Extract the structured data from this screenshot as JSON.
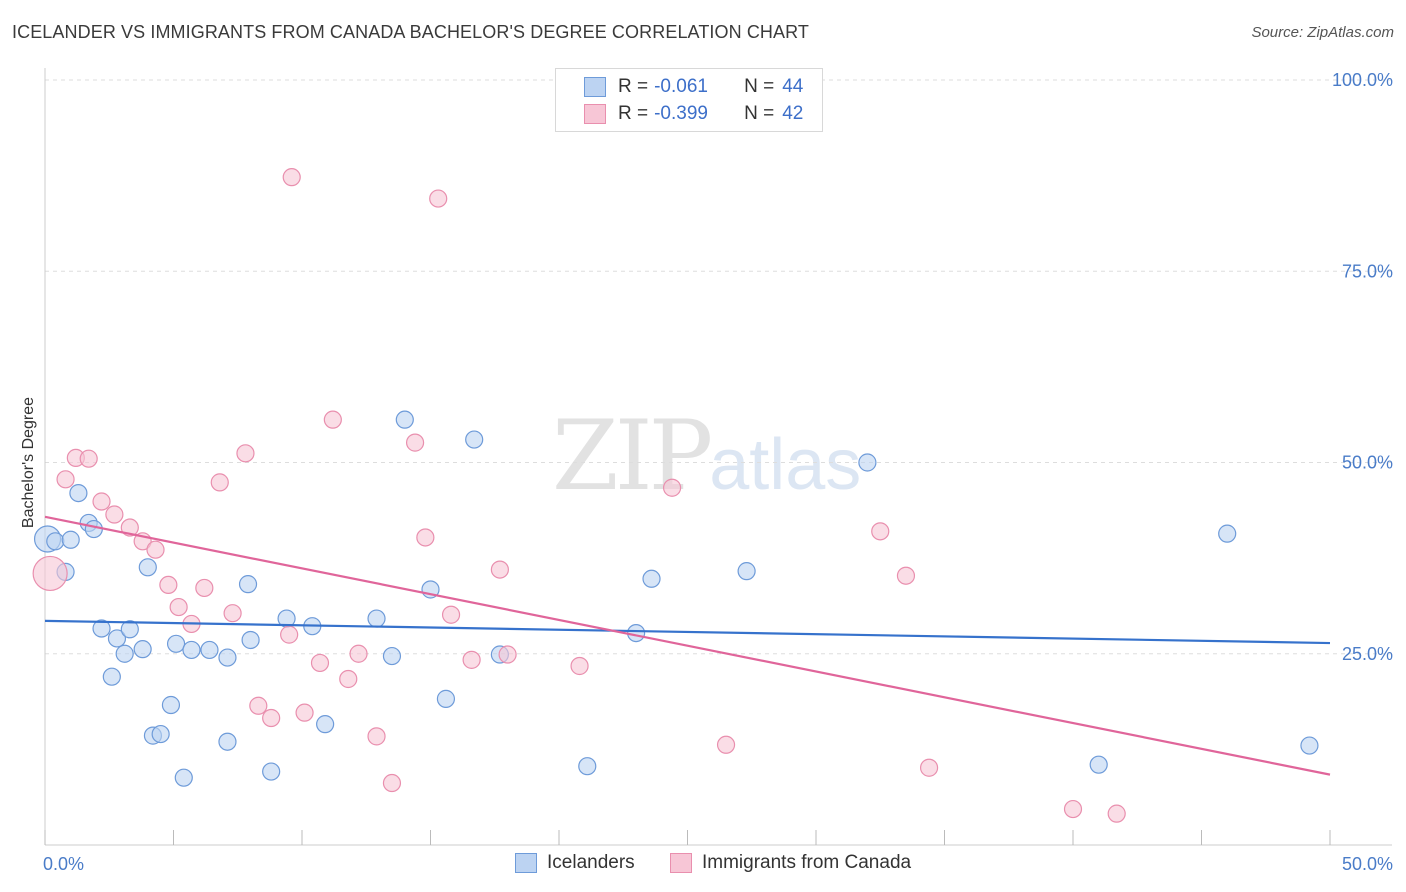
{
  "title": "ICELANDER VS IMMIGRANTS FROM CANADA BACHELOR'S DEGREE CORRELATION CHART",
  "source": "Source: ZipAtlas.com",
  "watermark": {
    "zip": "ZIP",
    "atlas": "atlas"
  },
  "legend": {
    "r_label": "R =",
    "n_label": "N =",
    "rows": [
      {
        "r": "-0.061",
        "n": "44"
      },
      {
        "r": "-0.399",
        "n": "42"
      }
    ]
  },
  "bottom_legend": {
    "series1": "Icelanders",
    "series2": "Immigrants from Canada"
  },
  "colors": {
    "blue_fill": "#bcd3f2",
    "blue_stroke": "#6e9bd9",
    "blue_line": "#3672cc",
    "pink_fill": "#f7c6d6",
    "pink_stroke": "#e98fae",
    "pink_line": "#e0659a",
    "grid": "#dddddd",
    "tick": "#4a7cc8"
  },
  "chart_data": {
    "type": "scatter",
    "title": "ICELANDER VS IMMIGRANTS FROM CANADA BACHELOR'S DEGREE CORRELATION CHART",
    "xlabel": "",
    "ylabel": "Bachelor's Degree",
    "xlim": [
      0,
      50
    ],
    "ylim": [
      0,
      100
    ],
    "x_tick_labels": [
      "0.0%",
      "50.0%"
    ],
    "y_ticks": [
      25,
      50,
      75,
      100
    ],
    "y_tick_labels": [
      "25.0%",
      "50.0%",
      "75.0%",
      "100.0%"
    ],
    "series": [
      {
        "name": "Icelanders",
        "r": -0.061,
        "n": 44,
        "trend": [
          [
            0,
            29.3
          ],
          [
            50,
            26.4
          ]
        ],
        "points": [
          [
            0.1,
            40.0
          ],
          [
            0.4,
            39.7
          ],
          [
            0.8,
            35.7
          ],
          [
            1.0,
            39.9
          ],
          [
            1.3,
            46.0
          ],
          [
            1.7,
            42.1
          ],
          [
            1.9,
            41.3
          ],
          [
            2.2,
            28.3
          ],
          [
            2.6,
            22.0
          ],
          [
            2.8,
            27.0
          ],
          [
            3.1,
            25.0
          ],
          [
            3.3,
            28.2
          ],
          [
            3.8,
            25.6
          ],
          [
            4.0,
            36.3
          ],
          [
            4.2,
            14.3
          ],
          [
            4.5,
            14.5
          ],
          [
            4.9,
            18.3
          ],
          [
            5.1,
            26.3
          ],
          [
            5.4,
            8.8
          ],
          [
            5.7,
            25.5
          ],
          [
            6.4,
            25.5
          ],
          [
            7.1,
            24.5
          ],
          [
            7.1,
            13.5
          ],
          [
            7.9,
            34.1
          ],
          [
            8.0,
            26.8
          ],
          [
            8.8,
            9.6
          ],
          [
            9.4,
            29.6
          ],
          [
            10.4,
            28.6
          ],
          [
            10.9,
            15.8
          ],
          [
            12.9,
            29.6
          ],
          [
            13.5,
            24.7
          ],
          [
            14.0,
            55.6
          ],
          [
            15.0,
            33.4
          ],
          [
            15.6,
            19.1
          ],
          [
            16.7,
            53.0
          ],
          [
            17.7,
            24.9
          ],
          [
            21.1,
            10.3
          ],
          [
            23.0,
            27.7
          ],
          [
            23.6,
            34.8
          ],
          [
            27.3,
            35.8
          ],
          [
            32.0,
            50.0
          ],
          [
            41.0,
            10.5
          ],
          [
            46.0,
            40.7
          ],
          [
            49.2,
            13.0
          ]
        ]
      },
      {
        "name": "Immigrants from Canada",
        "r": -0.399,
        "n": 42,
        "trend": [
          [
            0,
            42.9
          ],
          [
            50,
            9.2
          ]
        ],
        "points": [
          [
            0.2,
            35.5
          ],
          [
            0.8,
            47.8
          ],
          [
            1.2,
            50.6
          ],
          [
            1.7,
            50.5
          ],
          [
            2.2,
            44.9
          ],
          [
            2.7,
            43.2
          ],
          [
            3.3,
            41.5
          ],
          [
            3.8,
            39.7
          ],
          [
            4.3,
            38.6
          ],
          [
            4.8,
            34.0
          ],
          [
            5.2,
            31.1
          ],
          [
            5.7,
            28.9
          ],
          [
            6.2,
            33.6
          ],
          [
            6.8,
            47.4
          ],
          [
            7.3,
            30.3
          ],
          [
            7.8,
            51.2
          ],
          [
            8.3,
            18.2
          ],
          [
            8.8,
            16.6
          ],
          [
            9.5,
            27.5
          ],
          [
            9.6,
            87.3
          ],
          [
            10.1,
            17.3
          ],
          [
            10.7,
            23.8
          ],
          [
            11.2,
            55.6
          ],
          [
            11.8,
            21.7
          ],
          [
            12.2,
            25.0
          ],
          [
            12.9,
            14.2
          ],
          [
            13.5,
            8.1
          ],
          [
            14.4,
            52.6
          ],
          [
            14.8,
            40.2
          ],
          [
            15.3,
            84.5
          ],
          [
            15.8,
            30.1
          ],
          [
            16.6,
            24.2
          ],
          [
            17.7,
            36.0
          ],
          [
            18.0,
            24.9
          ],
          [
            20.8,
            23.4
          ],
          [
            24.4,
            46.7
          ],
          [
            26.5,
            13.1
          ],
          [
            32.5,
            41.0
          ],
          [
            33.5,
            35.2
          ],
          [
            34.4,
            10.1
          ],
          [
            40.0,
            4.7
          ],
          [
            41.7,
            4.1
          ]
        ]
      }
    ]
  }
}
